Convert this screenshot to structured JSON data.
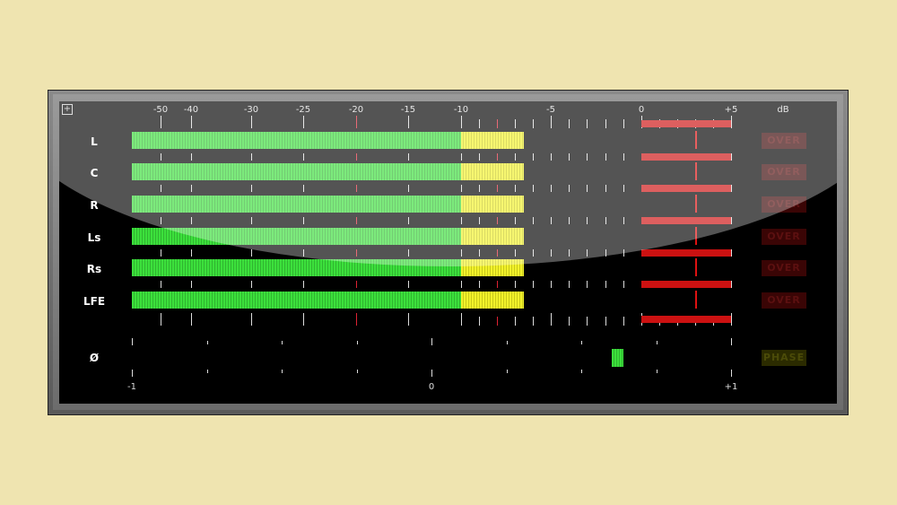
{
  "scale": {
    "unit_label": "dB",
    "ticks": [
      "-50",
      "-40",
      "-30",
      "-25",
      "-20",
      "-15",
      "-10",
      "-5",
      "0",
      "+5"
    ]
  },
  "channels": [
    {
      "name": "L",
      "level_db": -6.5,
      "peak_db": 3,
      "over": "OVER"
    },
    {
      "name": "C",
      "level_db": -6.5,
      "peak_db": 3,
      "over": "OVER"
    },
    {
      "name": "R",
      "level_db": -6.5,
      "peak_db": 3,
      "over": "OVER"
    },
    {
      "name": "Ls",
      "level_db": -6.5,
      "peak_db": 3,
      "over": "OVER"
    },
    {
      "name": "Rs",
      "level_db": -6.5,
      "peak_db": 3,
      "over": "OVER"
    },
    {
      "name": "LFE",
      "level_db": -6.5,
      "peak_db": 3,
      "over": "OVER"
    }
  ],
  "phase": {
    "symbol": "Ø",
    "value": 0.62,
    "ticks": [
      "-1",
      "0",
      "+1"
    ],
    "label": "PHASE"
  },
  "colors": {
    "green": "#3ce03c",
    "yellow": "#f2f22a",
    "red": "#cc1111"
  },
  "icons": {
    "expand": "expand-icon"
  }
}
